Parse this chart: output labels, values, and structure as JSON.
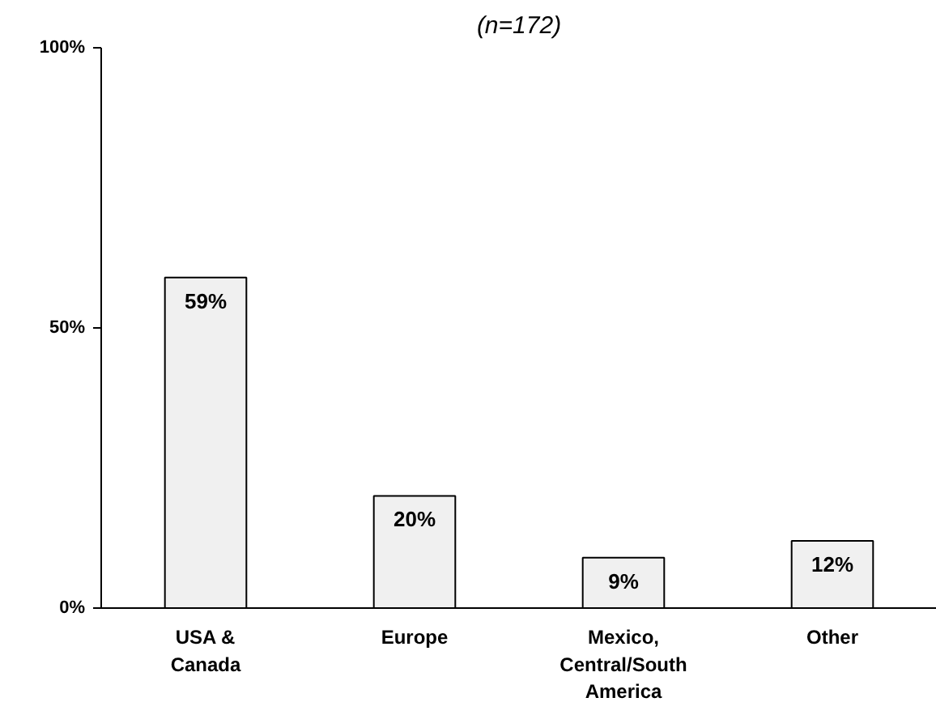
{
  "chart_data": {
    "type": "bar",
    "title": "(n=172)",
    "categories": [
      "USA & Canada",
      "Europe",
      "Mexico, Central/South America",
      "Other"
    ],
    "values": [
      59,
      20,
      9,
      12
    ],
    "value_labels": [
      "59%",
      "20%",
      "9%",
      "12%"
    ],
    "color": "#f0f0f0",
    "ylim": [
      0,
      100
    ],
    "yticks": [
      {
        "value": 0,
        "label": "0%"
      },
      {
        "value": 50,
        "label": "50%"
      },
      {
        "value": 100,
        "label": "100%"
      }
    ],
    "grid": false
  }
}
